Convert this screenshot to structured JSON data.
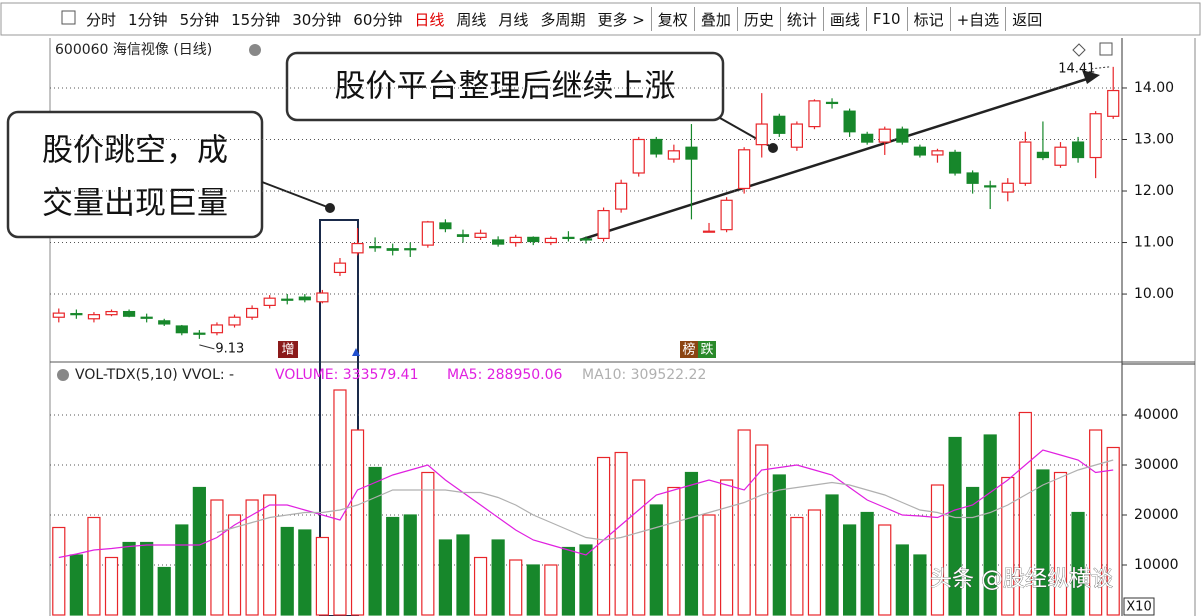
{
  "toolbar": {
    "items": [
      "分时",
      "1分钟",
      "5分钟",
      "15分钟",
      "30分钟",
      "60分钟",
      "日线",
      "周线",
      "月线",
      "多周期",
      "更多 >"
    ],
    "active_item": 6,
    "active_color": "#e00000",
    "right_items": [
      "复权",
      "叠加",
      "历史",
      "统计",
      "画线",
      "F10",
      "标记",
      "+自选",
      "返回"
    ]
  },
  "header": {
    "title": "600060 海信视像 (日线)"
  },
  "callouts": [
    {
      "lines": [
        "股价跳空，成",
        "交量出现巨量"
      ]
    },
    {
      "lines": [
        "股价平台整理后继续上涨"
      ]
    }
  ],
  "badges": [
    "增",
    "榜",
    "跌"
  ],
  "watermark": "头条 @股经纵横谈",
  "chart_data": [
    {
      "type": "candlestick",
      "open": [
        9.55,
        9.62,
        9.52,
        9.6,
        9.66,
        9.55,
        9.48,
        9.38,
        9.24,
        9.25,
        9.4,
        9.55,
        9.78,
        9.9,
        9.94,
        9.85,
        10.42,
        10.8,
        10.92,
        10.88,
        10.88,
        10.95,
        11.38,
        11.15,
        11.1,
        11.05,
        11.0,
        11.1,
        11.0,
        11.1,
        11.07,
        11.08,
        11.65,
        12.35,
        13.0,
        12.62,
        12.85,
        11.22,
        11.25,
        12.05,
        12.9,
        13.45,
        12.85,
        13.25,
        13.72,
        13.55,
        13.1,
        12.95,
        13.2,
        12.85,
        12.7,
        12.75,
        12.35,
        12.1,
        11.98,
        12.15,
        12.75,
        12.5,
        12.95,
        12.65,
        13.45
      ],
      "high": [
        9.72,
        9.7,
        9.65,
        9.7,
        9.7,
        9.62,
        9.52,
        9.4,
        9.3,
        9.45,
        9.6,
        9.78,
        9.98,
        10.0,
        10.0,
        10.08,
        10.7,
        11.28,
        11.1,
        10.98,
        11.0,
        11.42,
        11.45,
        11.25,
        11.25,
        11.12,
        11.15,
        11.12,
        11.12,
        11.22,
        11.12,
        11.68,
        12.22,
        13.05,
        13.05,
        12.9,
        13.3,
        11.38,
        11.88,
        12.85,
        13.9,
        13.5,
        13.35,
        13.78,
        13.8,
        13.6,
        13.15,
        13.25,
        13.25,
        12.9,
        12.82,
        12.8,
        12.4,
        12.2,
        12.25,
        13.15,
        13.35,
        12.95,
        13.05,
        13.55,
        14.41
      ],
      "low": [
        9.45,
        9.52,
        9.45,
        9.57,
        9.55,
        9.45,
        9.38,
        9.2,
        9.13,
        9.2,
        9.35,
        9.5,
        9.72,
        9.8,
        9.84,
        9.82,
        10.35,
        10.75,
        10.82,
        10.75,
        10.72,
        10.9,
        11.2,
        11.0,
        11.05,
        10.92,
        10.92,
        10.95,
        10.95,
        11.02,
        10.98,
        11.02,
        11.58,
        12.28,
        12.65,
        12.55,
        11.45,
        11.22,
        11.2,
        11.95,
        12.65,
        13.05,
        12.78,
        13.2,
        13.6,
        13.05,
        12.9,
        12.7,
        12.9,
        12.65,
        12.55,
        12.3,
        11.95,
        11.65,
        11.8,
        12.1,
        12.6,
        12.45,
        12.55,
        12.25,
        13.4
      ],
      "close": [
        9.63,
        9.6,
        9.6,
        9.66,
        9.57,
        9.53,
        9.42,
        9.25,
        9.22,
        9.4,
        9.55,
        9.72,
        9.92,
        9.88,
        9.89,
        10.02,
        10.6,
        10.98,
        10.9,
        10.85,
        10.86,
        11.4,
        11.27,
        11.12,
        11.18,
        10.97,
        11.1,
        11.02,
        11.08,
        11.08,
        11.05,
        11.62,
        12.15,
        13.0,
        12.72,
        12.78,
        12.62,
        11.22,
        11.82,
        12.8,
        13.3,
        13.12,
        13.3,
        13.75,
        13.7,
        13.15,
        12.95,
        13.2,
        12.95,
        12.7,
        12.78,
        12.35,
        12.15,
        12.08,
        12.15,
        12.95,
        12.65,
        12.85,
        12.65,
        13.5,
        13.95
      ],
      "ylim": [
        8.72,
        14.97
      ],
      "yticks": [
        {
          "value": 10,
          "label": "10.00"
        },
        {
          "value": 11,
          "label": "11.00"
        },
        {
          "value": 12,
          "label": "12.00"
        },
        {
          "value": 13,
          "label": "13.00"
        },
        {
          "value": 14,
          "label": "14.00"
        }
      ],
      "grid": true,
      "up_color": "#e8262a",
      "down_color": "#17872b",
      "annotations": {
        "high": 14.41,
        "low": 9.13
      }
    },
    {
      "type": "bar",
      "title": "VOL-TDX(5,10) VVOL: -",
      "y_unit": "X10",
      "series": [
        {
          "name": "VOLUME: 333579.41",
          "color": "#e020e0",
          "values": [
            17500,
            12000,
            19500,
            11500,
            14500,
            14500,
            9500,
            18000,
            25500,
            23000,
            20000,
            23000,
            24000,
            17500,
            17000,
            15500,
            45000,
            37000,
            29500,
            19500,
            20000,
            28500,
            15000,
            16000,
            11500,
            15000,
            11000,
            10000,
            10000,
            13500,
            14000,
            31500,
            32500,
            27000,
            22000,
            25500,
            28500,
            20000,
            27000,
            37000,
            34000,
            28000,
            19500,
            21000,
            24000,
            18000,
            20500,
            18000,
            14000,
            12000,
            26000,
            35500,
            25500,
            36000,
            27500,
            40500,
            29000,
            28500,
            20500,
            37000,
            33500
          ]
        },
        {
          "name": "MA5: 288950.06",
          "color": "#e020e0",
          "values": [
            11500,
            12200,
            13000,
            13300,
            13700,
            14000,
            14000,
            14000,
            14000,
            15500,
            18000,
            20000,
            22000,
            22000,
            21000,
            20000,
            19000,
            25000,
            26500,
            28000,
            29000,
            30000,
            27000,
            24500,
            22000,
            19500,
            17000,
            15000,
            14000,
            13000,
            12000,
            15000,
            18000,
            21000,
            24000,
            25000,
            26000,
            27000,
            26000,
            25000,
            29000,
            29500,
            30000,
            29000,
            28000,
            25500,
            23000,
            21500,
            20000,
            19800,
            19500,
            21000,
            22000,
            24500,
            27000,
            30000,
            33000,
            32000,
            31000,
            28500,
            29000
          ]
        },
        {
          "name": "MA10: 309522.22",
          "color": "#b0b0b0",
          "values": [
            null,
            null,
            null,
            null,
            null,
            null,
            null,
            null,
            null,
            16500,
            17500,
            18500,
            19500,
            20000,
            20500,
            20500,
            21000,
            22000,
            23500,
            25000,
            25000,
            25000,
            25000,
            24500,
            24500,
            23500,
            22000,
            20000,
            18500,
            17000,
            15500,
            15000,
            15500,
            16500,
            17500,
            18500,
            19500,
            20500,
            21500,
            22500,
            24000,
            25000,
            25500,
            26000,
            26500,
            26000,
            25000,
            24000,
            22500,
            21000,
            20500,
            19500,
            19500,
            20500,
            22000,
            24000,
            26000,
            27500,
            29000,
            30000,
            31000
          ]
        }
      ],
      "ylim": [
        0,
        50200
      ],
      "yticks": [
        10000,
        20000,
        30000,
        40000
      ],
      "grid": true
    }
  ]
}
